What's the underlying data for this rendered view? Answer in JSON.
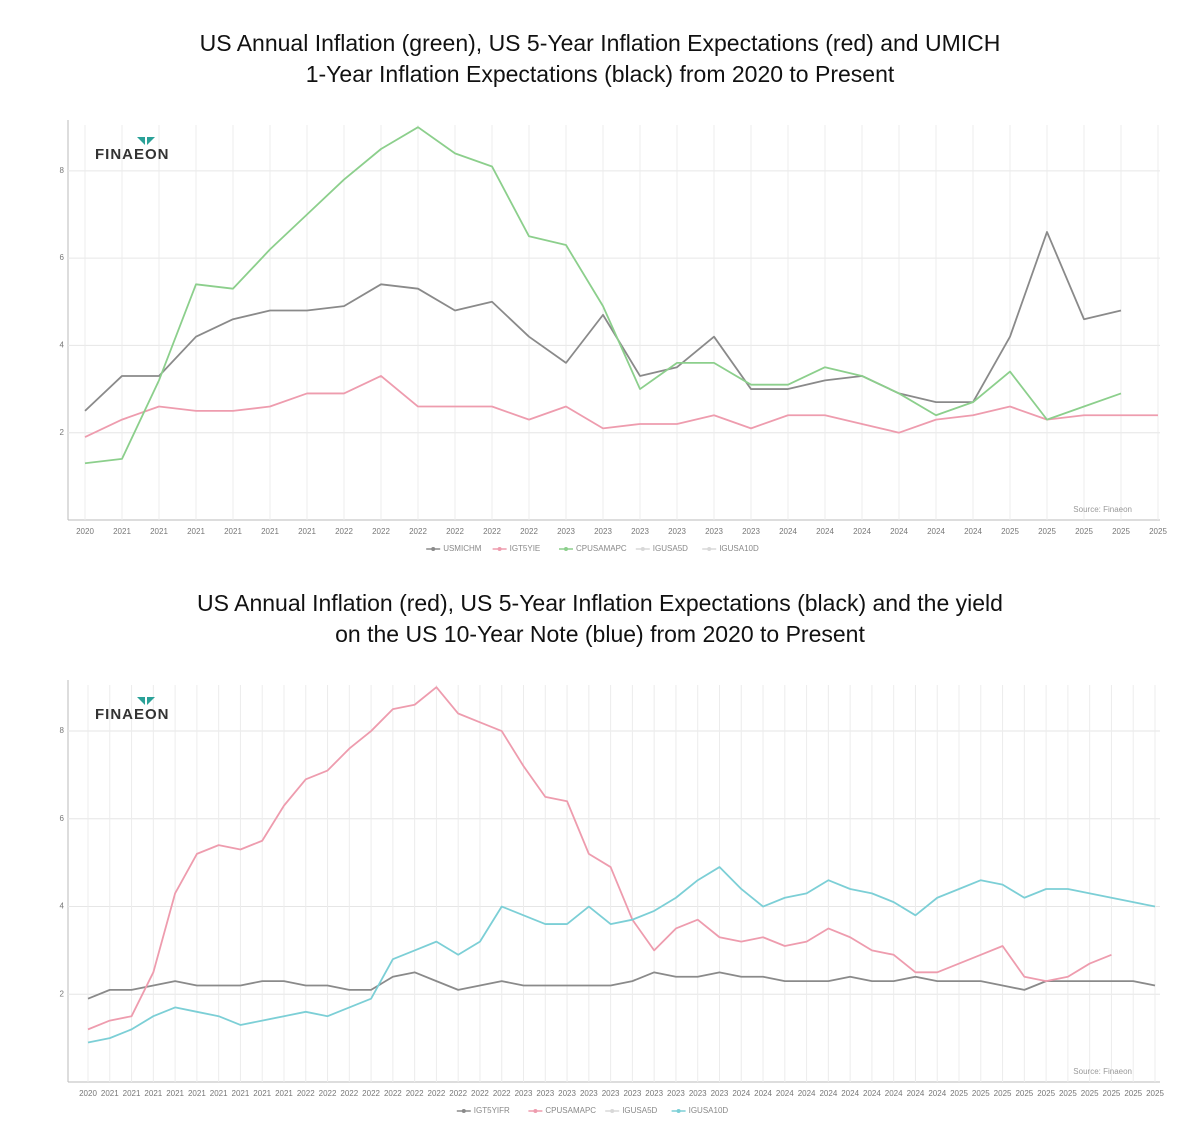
{
  "chart_data": [
    {
      "type": "line",
      "title": [
        "US Annual Inflation (green), US 5-Year Inflation Expectations (red) and UMICH",
        "1-Year Inflation Expectations (black) from 2020 to Present"
      ],
      "logo": "FINAEON",
      "source": "Source: Finaeon",
      "categories": [
        "2020",
        "2021",
        "2021",
        "2021",
        "2021",
        "2021",
        "2021",
        "2022",
        "2022",
        "2022",
        "2022",
        "2022",
        "2022",
        "2023",
        "2023",
        "2023",
        "2023",
        "2023",
        "2023",
        "2024",
        "2024",
        "2024",
        "2024",
        "2024",
        "2024",
        "2025",
        "2025",
        "2025",
        "2025",
        "2025"
      ],
      "ylim": [
        0,
        9.05
      ],
      "yticks": [
        2,
        4,
        6,
        8
      ],
      "grid": true,
      "series": [
        {
          "name": "USMICHM",
          "color": "#8a8a8a",
          "values": [
            2.5,
            3.3,
            3.3,
            4.2,
            4.6,
            4.8,
            4.8,
            4.9,
            5.4,
            5.3,
            4.8,
            5.0,
            4.2,
            3.6,
            4.7,
            3.3,
            3.5,
            4.2,
            3.0,
            3.0,
            3.2,
            3.3,
            2.9,
            2.7,
            2.7,
            4.2,
            6.6,
            4.6,
            4.8,
            null
          ]
        },
        {
          "name": "IGT5YIE",
          "color": "#ee9cae",
          "values": [
            1.9,
            2.3,
            2.6,
            2.5,
            2.5,
            2.6,
            2.9,
            2.9,
            3.3,
            2.6,
            2.6,
            2.6,
            2.3,
            2.6,
            2.1,
            2.2,
            2.2,
            2.4,
            2.1,
            2.4,
            2.4,
            2.2,
            2.0,
            2.3,
            2.4,
            2.6,
            2.3,
            2.4,
            2.4,
            2.4
          ]
        },
        {
          "name": "CPUSAMAPC",
          "color": "#8ccf8c",
          "values": [
            1.3,
            1.4,
            3.2,
            5.4,
            5.3,
            6.2,
            7.0,
            7.8,
            8.5,
            9.0,
            8.4,
            8.1,
            6.5,
            6.3,
            4.9,
            3.0,
            3.6,
            3.6,
            3.1,
            3.1,
            3.5,
            3.3,
            2.9,
            2.4,
            2.7,
            3.4,
            2.3,
            2.6,
            2.9,
            null
          ]
        }
      ],
      "hidden_series": [
        {
          "name": "IGUSA5D",
          "color": "#d8d8d8"
        },
        {
          "name": "IGUSA10D",
          "color": "#d8d8d8"
        }
      ]
    },
    {
      "type": "line",
      "title": [
        "US Annual Inflation (red), US 5-Year Inflation Expectations (black) and the yield",
        "on the US 10-Year Note (blue) from 2020 to Present"
      ],
      "logo": "FINAEON",
      "source": "Source: Finaeon",
      "categories": [
        "2020",
        "2021",
        "2021",
        "2021",
        "2021",
        "2021",
        "2021",
        "2021",
        "2021",
        "2021",
        "2022",
        "2022",
        "2022",
        "2022",
        "2022",
        "2022",
        "2022",
        "2022",
        "2022",
        "2022",
        "2023",
        "2023",
        "2023",
        "2023",
        "2023",
        "2023",
        "2023",
        "2023",
        "2023",
        "2023",
        "2024",
        "2024",
        "2024",
        "2024",
        "2024",
        "2024",
        "2024",
        "2024",
        "2024",
        "2024",
        "2025",
        "2025",
        "2025",
        "2025",
        "2025",
        "2025",
        "2025",
        "2025",
        "2025",
        "2025"
      ],
      "ylim": [
        0,
        9.05
      ],
      "yticks": [
        2,
        4,
        6,
        8
      ],
      "grid": true,
      "series": [
        {
          "name": "IGT5YIFR",
          "color": "#8a8a8a",
          "values": [
            1.9,
            2.1,
            2.1,
            2.2,
            2.3,
            2.2,
            2.2,
            2.2,
            2.3,
            2.3,
            2.2,
            2.2,
            2.1,
            2.1,
            2.4,
            2.5,
            2.3,
            2.1,
            2.2,
            2.3,
            2.2,
            2.2,
            2.2,
            2.2,
            2.2,
            2.3,
            2.5,
            2.4,
            2.4,
            2.5,
            2.4,
            2.4,
            2.3,
            2.3,
            2.3,
            2.4,
            2.3,
            2.3,
            2.4,
            2.3,
            2.3,
            2.3,
            2.2,
            2.1,
            2.3,
            2.3,
            2.3,
            2.3,
            2.3,
            2.2
          ]
        },
        {
          "name": "CPUSAMAPC",
          "color": "#ee9cae",
          "values": [
            1.2,
            1.4,
            1.5,
            2.5,
            4.3,
            5.2,
            5.4,
            5.3,
            5.5,
            6.3,
            6.9,
            7.1,
            7.6,
            8.0,
            8.5,
            8.6,
            9.0,
            8.4,
            8.2,
            8.0,
            7.2,
            6.5,
            6.4,
            5.2,
            4.9,
            3.7,
            3.0,
            3.5,
            3.7,
            3.3,
            3.2,
            3.3,
            3.1,
            3.2,
            3.5,
            3.3,
            3.0,
            2.9,
            2.5,
            2.5,
            2.7,
            2.9,
            3.1,
            2.4,
            2.3,
            2.4,
            2.7,
            2.9,
            null,
            null
          ]
        },
        {
          "name": "IGUSA10D",
          "color": "#7ccfd6",
          "values": [
            0.9,
            1.0,
            1.2,
            1.5,
            1.7,
            1.6,
            1.5,
            1.3,
            1.4,
            1.5,
            1.6,
            1.5,
            1.7,
            1.9,
            2.8,
            3.0,
            3.2,
            2.9,
            3.2,
            4.0,
            3.8,
            3.6,
            3.6,
            4.0,
            3.6,
            3.7,
            3.9,
            4.2,
            4.6,
            4.9,
            4.4,
            4.0,
            4.2,
            4.3,
            4.6,
            4.4,
            4.3,
            4.1,
            3.8,
            4.2,
            4.4,
            4.6,
            4.5,
            4.2,
            4.4,
            4.4,
            4.3,
            4.2,
            4.1,
            4.0
          ]
        }
      ],
      "hidden_series": [
        {
          "name": "IGUSA5D",
          "color": "#d8d8d8"
        }
      ],
      "legend_order": [
        "IGT5YIFR",
        "CPUSAMAPC",
        "IGUSA5D",
        "IGUSA10D"
      ]
    }
  ]
}
